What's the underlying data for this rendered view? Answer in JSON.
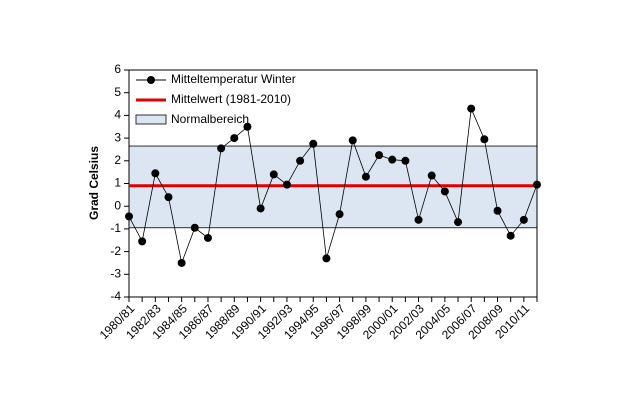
{
  "chart_data": {
    "type": "line",
    "y_label": "Grad Celsius",
    "categories": [
      "1980/81",
      null,
      "1982/83",
      null,
      "1984/85",
      null,
      "1986/87",
      null,
      "1988/89",
      null,
      "1990/91",
      null,
      "1992/93",
      null,
      "1994/95",
      null,
      "1996/97",
      null,
      "1998/99",
      null,
      "2000/01",
      null,
      "2002/03",
      null,
      "2004/05",
      null,
      "2006/07",
      null,
      "2008/09",
      null,
      "2010/11",
      null
    ],
    "series": [
      {
        "name": "Mitteltemperatur Winter",
        "color": "#000000",
        "values": [
          -0.45,
          -1.55,
          1.45,
          0.4,
          -2.5,
          -0.95,
          -1.4,
          2.55,
          3.0,
          3.5,
          -0.1,
          1.4,
          0.95,
          2.0,
          2.75,
          -2.3,
          -0.35,
          2.9,
          1.3,
          2.25,
          2.05,
          2.0,
          -0.6,
          1.35,
          0.65,
          -0.7,
          4.3,
          2.95,
          -0.2,
          -1.3,
          -0.6,
          0.95
        ]
      }
    ],
    "mean": {
      "name": "Mittelwert (1981-2010)",
      "color": "#e00000",
      "value": 0.9
    },
    "normal_range": {
      "name": "Normalbereich",
      "color": "#dce6f2",
      "low": -0.95,
      "high": 2.65
    },
    "ylim": [
      -4,
      6
    ],
    "yticks": [
      -4,
      -3,
      -2,
      -1,
      0,
      1,
      2,
      3,
      4,
      5,
      6
    ]
  }
}
